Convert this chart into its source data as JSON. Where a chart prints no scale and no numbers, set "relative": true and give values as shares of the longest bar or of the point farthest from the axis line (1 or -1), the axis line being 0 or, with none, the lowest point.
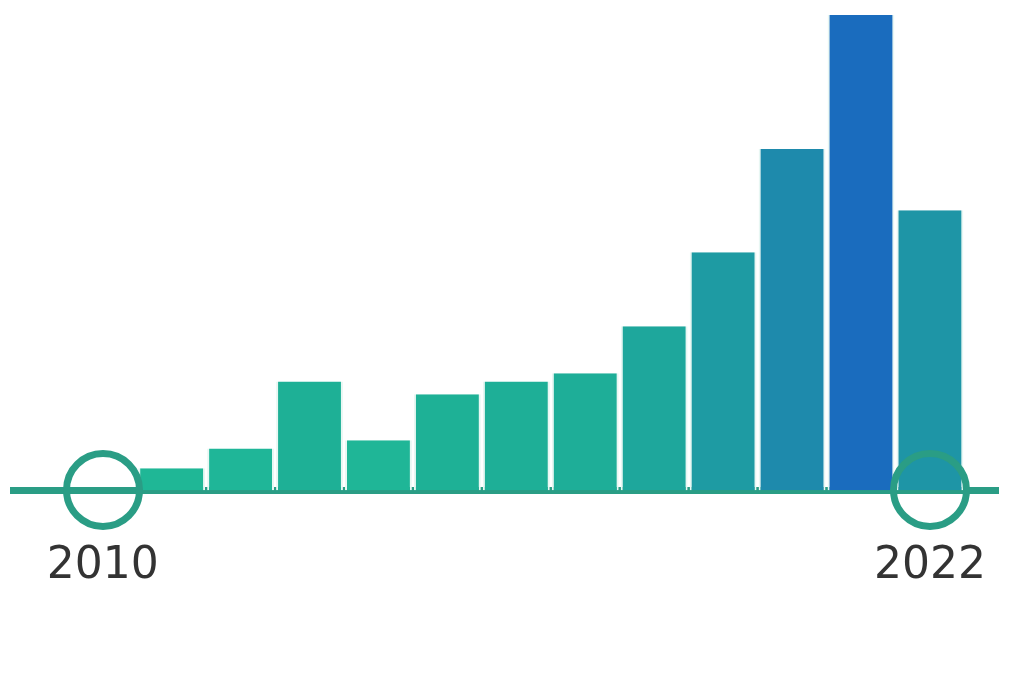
{
  "chart_data": {
    "type": "bar",
    "relative": true,
    "x": [
      2011,
      2012,
      2013,
      2014,
      2015,
      2016,
      2017,
      2018,
      2019,
      2020,
      2021,
      2022
    ],
    "values": [
      0.046,
      0.088,
      0.229,
      0.105,
      0.202,
      0.229,
      0.246,
      0.345,
      0.501,
      0.718,
      1,
      0.589
    ],
    "colors": [
      "#1fb796",
      "#1fb698",
      "#1eb096",
      "#1fb697",
      "#1eb196",
      "#1eaf97",
      "#1eae98",
      "#1ea79c",
      "#1e9ba3",
      "#1e8aac",
      "#1a6cbe",
      "#1e95a6"
    ],
    "xlim": [
      2008.7,
      2023
    ],
    "xticks": [
      2010,
      2022
    ],
    "tick_labels": "x",
    "grid": false,
    "legend": false
  }
}
